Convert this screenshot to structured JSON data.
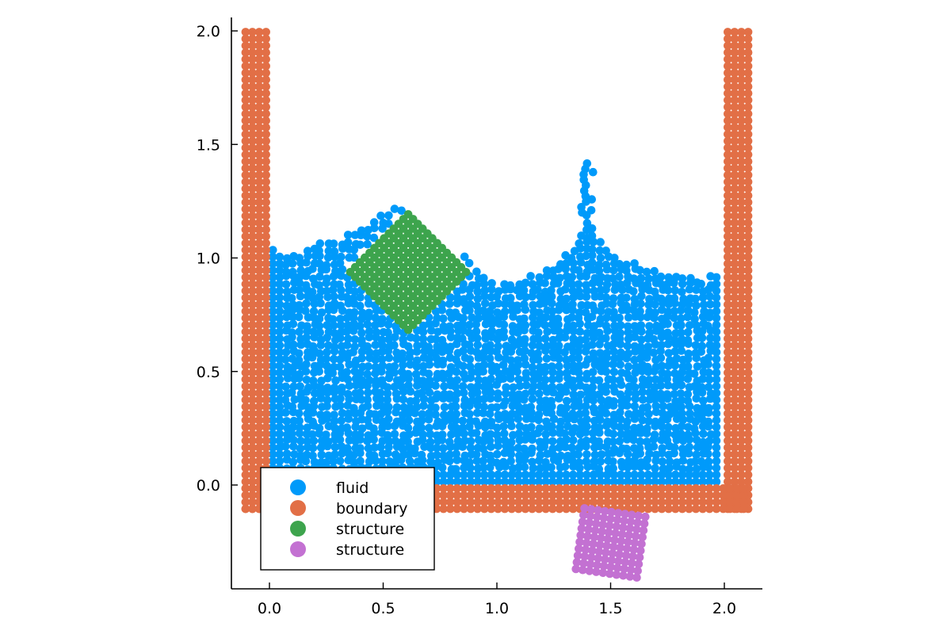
{
  "chart_data": {
    "type": "scatter",
    "title": "",
    "xlabel": "",
    "ylabel": "",
    "xlim": [
      -0.17,
      2.17
    ],
    "ylim": [
      -0.45,
      2.05
    ],
    "x_ticks": [
      0.0,
      0.5,
      1.0,
      1.5,
      2.0
    ],
    "x_tick_labels": [
      "0.0",
      "0.5",
      "1.0",
      "1.5",
      "2.0"
    ],
    "y_ticks": [
      0.0,
      0.5,
      1.0,
      1.5,
      2.0
    ],
    "y_tick_labels": [
      "0.0",
      "0.5",
      "1.0",
      "1.5",
      "2.0"
    ],
    "grid": false,
    "aspect": "equal",
    "legend_position": "bottom-left",
    "particle_spacing": 0.03,
    "series": [
      {
        "name": "fluid",
        "color": "#009AFA",
        "description_of_extent": "particles filling the tank",
        "x_range": [
          0.015,
          1.985
        ],
        "bottom": 0.015,
        "surface_profile": [
          [
            0.0,
            1.04
          ],
          [
            0.12,
            1.02
          ],
          [
            0.25,
            1.08
          ],
          [
            0.35,
            1.1
          ],
          [
            0.45,
            1.16
          ],
          [
            0.52,
            1.2
          ],
          [
            0.6,
            1.24
          ],
          [
            0.7,
            1.1
          ],
          [
            0.8,
            1.05
          ],
          [
            0.9,
            0.98
          ],
          [
            1.0,
            0.88
          ],
          [
            1.1,
            0.9
          ],
          [
            1.2,
            0.95
          ],
          [
            1.3,
            1.0
          ],
          [
            1.36,
            1.08
          ],
          [
            1.4,
            1.2
          ],
          [
            1.44,
            1.1
          ],
          [
            1.55,
            1.0
          ],
          [
            1.7,
            0.95
          ],
          [
            1.8,
            0.93
          ],
          [
            1.9,
            0.91
          ],
          [
            1.985,
            0.93
          ]
        ],
        "jet": {
          "x": [
            1.38,
            1.45
          ],
          "y": [
            1.2,
            1.42
          ]
        }
      },
      {
        "name": "boundary",
        "color": "#E26F46",
        "walls": [
          {
            "x": [
              -0.105,
              -0.015
            ],
            "y": [
              -0.105,
              1.995
            ]
          },
          {
            "x": [
              2.015,
              2.105
            ],
            "y": [
              -0.105,
              1.995
            ]
          },
          {
            "x": [
              -0.105,
              2.105
            ],
            "y": [
              -0.105,
              -0.015
            ]
          }
        ]
      },
      {
        "name": "structure",
        "color": "#3DA44D",
        "shape": "rotated square",
        "center": [
          0.61,
          0.945
        ],
        "half_width": 0.185,
        "rotation_deg": 45
      },
      {
        "name": "structure",
        "color": "#C371D2",
        "shape": "rotated square",
        "center": [
          1.5,
          -0.255
        ],
        "half_width": 0.135,
        "rotation_deg": -8
      }
    ]
  }
}
